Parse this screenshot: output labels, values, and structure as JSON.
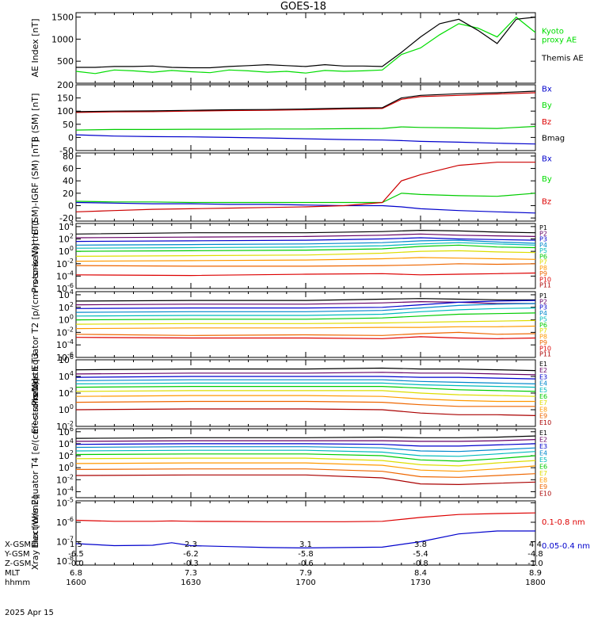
{
  "title": "GOES-18",
  "date_label": "2025 Apr 15",
  "orbit_table": {
    "row_labels": [
      "X-GSM",
      "Y-GSM",
      "Z-GSM",
      "MLT",
      "hhmm"
    ],
    "columns": [
      [
        "1.5",
        "-6.5",
        "-0.0",
        "6.8",
        "1600"
      ],
      [
        "2.3",
        "-6.2",
        "-0.3",
        "7.3",
        "1630"
      ],
      [
        "3.1",
        "-5.8",
        "-0.6",
        "7.9",
        "1700"
      ],
      [
        "3.8",
        "-5.4",
        "-0.8",
        "8.4",
        "1730"
      ],
      [
        "4.4",
        "-4.8",
        "-1.0",
        "8.9",
        "1800"
      ]
    ]
  },
  "chart_data": [
    {
      "type": "line",
      "ylabel": "AE Index [nT]",
      "yticks": [
        "1500",
        "1000",
        "500"
      ],
      "ylim": [
        0,
        1600
      ],
      "x": [
        0,
        5,
        10,
        15,
        20,
        25,
        30,
        35,
        40,
        45,
        50,
        55,
        60,
        65,
        70,
        75,
        80,
        85,
        90,
        95,
        100,
        105,
        110,
        115,
        120
      ],
      "series": [
        {
          "name": "Kyoto proxy AE",
          "color": "#00dd00",
          "values": [
            270,
            220,
            300,
            280,
            250,
            290,
            260,
            240,
            300,
            280,
            250,
            270,
            230,
            290,
            270,
            280,
            300,
            650,
            800,
            1100,
            1350,
            1250,
            1050,
            1500,
            1150
          ]
        },
        {
          "name": "Themis AE",
          "color": "#000000",
          "values": [
            360,
            360,
            380,
            380,
            390,
            360,
            350,
            350,
            380,
            400,
            420,
            400,
            380,
            420,
            390,
            390,
            380,
            700,
            1050,
            1350,
            1450,
            1200,
            900,
            1450,
            1500
          ]
        }
      ]
    },
    {
      "type": "line",
      "ylabel": "B (SM) [nT]",
      "yticks": [
        "200",
        "150",
        "100",
        "50",
        "0",
        "-50"
      ],
      "ylim": [
        -50,
        200
      ],
      "x": [
        0,
        10,
        20,
        30,
        40,
        50,
        60,
        70,
        80,
        85,
        90,
        100,
        110,
        120
      ],
      "series": [
        {
          "name": "Bx",
          "color": "#0000cc",
          "values": [
            10,
            5,
            3,
            2,
            0,
            -2,
            -5,
            -8,
            -10,
            -12,
            -15,
            -18,
            -22,
            -25
          ]
        },
        {
          "name": "By",
          "color": "#00cc00",
          "values": [
            28,
            30,
            30,
            31,
            31,
            32,
            32,
            33,
            34,
            40,
            38,
            36,
            34,
            42
          ]
        },
        {
          "name": "Bz",
          "color": "#cc0000",
          "values": [
            95,
            97,
            98,
            100,
            102,
            103,
            105,
            108,
            110,
            145,
            155,
            160,
            165,
            170
          ]
        },
        {
          "name": "Bmag",
          "color": "#000000",
          "values": [
            98,
            100,
            101,
            103,
            105,
            106,
            108,
            111,
            113,
            150,
            160,
            166,
            170,
            176
          ]
        }
      ]
    },
    {
      "type": "line",
      "ylabel": "B (SM)-IGRF (SM) [nT]",
      "yticks": [
        "80",
        "60",
        "40",
        "20",
        "0",
        "-20"
      ],
      "ylim": [
        -25,
        85
      ],
      "x": [
        0,
        10,
        20,
        30,
        40,
        50,
        60,
        70,
        80,
        85,
        90,
        100,
        110,
        120
      ],
      "series": [
        {
          "name": "Bx",
          "color": "#0000cc",
          "values": [
            5,
            4,
            3,
            3,
            2,
            2,
            1,
            0,
            0,
            -2,
            -5,
            -8,
            -10,
            -12
          ]
        },
        {
          "name": "By",
          "color": "#00cc00",
          "values": [
            7,
            6,
            6,
            5,
            5,
            5,
            5,
            5,
            5,
            20,
            18,
            16,
            15,
            20
          ]
        },
        {
          "name": "Bz",
          "color": "#cc0000",
          "values": [
            -10,
            -8,
            -6,
            -5,
            -4,
            -3,
            -2,
            0,
            5,
            40,
            50,
            65,
            70,
            70
          ]
        }
      ]
    },
    {
      "type": "line",
      "ylabel": "Protons North T1",
      "yticks": [
        "10^4",
        "10^2",
        "10^0",
        "10^-2",
        "10^-4",
        "10^-6"
      ],
      "log_range_exp": [
        -6,
        4.5
      ],
      "x": [
        0,
        30,
        60,
        80,
        90,
        100,
        110,
        120
      ],
      "series": [
        {
          "name": "P1",
          "color": "#000000",
          "values": [
            2.8,
            3.0,
            3.0,
            3.2,
            3.4,
            3.3,
            3.1,
            3.0
          ]
        },
        {
          "name": "P2",
          "color": "#660066",
          "values": [
            2.2,
            2.3,
            2.4,
            2.6,
            2.8,
            2.6,
            2.5,
            2.4
          ]
        },
        {
          "name": "P3",
          "color": "#0000cc",
          "values": [
            1.6,
            1.7,
            1.8,
            2.0,
            2.2,
            2.0,
            1.9,
            1.8
          ]
        },
        {
          "name": "P4",
          "color": "#0088cc",
          "values": [
            1.0,
            1.1,
            1.2,
            1.4,
            1.7,
            1.8,
            1.5,
            1.3
          ]
        },
        {
          "name": "P5",
          "color": "#00bbbb",
          "values": [
            0.5,
            0.6,
            0.7,
            0.9,
            1.2,
            1.4,
            1.2,
            1.0
          ]
        },
        {
          "name": "P6",
          "color": "#00cc00",
          "values": [
            0.0,
            0.1,
            0.2,
            0.4,
            0.8,
            1.0,
            0.7,
            0.6
          ]
        },
        {
          "name": "P7",
          "color": "#dddd00",
          "values": [
            -0.8,
            -0.7,
            -0.6,
            -0.3,
            0.0,
            0.1,
            -0.1,
            -0.2
          ]
        },
        {
          "name": "P8",
          "color": "#ff9900",
          "values": [
            -1.6,
            -1.5,
            -1.4,
            -1.2,
            -1.0,
            -1.1,
            -1.2,
            -1.3
          ]
        },
        {
          "name": "P9",
          "color": "#ee6600",
          "values": [
            -2.3,
            -2.4,
            -2.4,
            -2.3,
            -2.2,
            -2.0,
            -2.1,
            -2.0
          ]
        },
        {
          "name": "P10",
          "color": "#dd0000",
          "values": [
            -3.8,
            -3.9,
            -3.7,
            -3.6,
            -3.8,
            -3.7,
            -3.6,
            -3.5
          ]
        },
        {
          "name": "P11",
          "color": "#aa0000",
          "values": [
            null,
            null,
            null,
            null,
            null,
            null,
            null,
            null
          ]
        }
      ]
    },
    {
      "type": "line",
      "ylabel": "Protons Equator T2 [p/(cm²-s-sr-keV)]",
      "yticks": [
        "10^4",
        "10^2",
        "10^0",
        "10^-2",
        "10^-4",
        "10^-6"
      ],
      "log_range_exp": [
        -6,
        4.5
      ],
      "x": [
        0,
        30,
        60,
        80,
        90,
        100,
        110,
        120
      ],
      "series": [
        {
          "name": "P1",
          "color": "#000000",
          "values": [
            3.0,
            3.1,
            3.1,
            3.3,
            3.4,
            3.3,
            3.2,
            3.2
          ]
        },
        {
          "name": "P2",
          "color": "#660066",
          "values": [
            2.4,
            2.5,
            2.5,
            2.7,
            2.9,
            2.8,
            2.6,
            2.6
          ]
        },
        {
          "name": "P3",
          "color": "#0000cc",
          "values": [
            1.8,
            1.9,
            1.9,
            2.0,
            2.4,
            2.8,
            3.0,
            3.1
          ]
        },
        {
          "name": "P4",
          "color": "#0088cc",
          "values": [
            1.2,
            1.3,
            1.3,
            1.5,
            1.9,
            2.3,
            2.5,
            2.6
          ]
        },
        {
          "name": "P5",
          "color": "#00bbbb",
          "values": [
            0.6,
            0.7,
            0.7,
            0.9,
            1.3,
            1.6,
            1.8,
            1.9
          ]
        },
        {
          "name": "P6",
          "color": "#00cc00",
          "values": [
            0.0,
            0.1,
            0.1,
            0.3,
            0.6,
            0.9,
            1.0,
            1.1
          ]
        },
        {
          "name": "P7",
          "color": "#dddd00",
          "values": [
            -0.7,
            -0.6,
            -0.6,
            -0.5,
            -0.4,
            -0.3,
            -0.2,
            -0.1
          ]
        },
        {
          "name": "P8",
          "color": "#ff9900",
          "values": [
            -1.4,
            -1.3,
            -1.3,
            -1.2,
            -1.2,
            -1.1,
            -1.1,
            -1.0
          ]
        },
        {
          "name": "P9",
          "color": "#ee6600",
          "values": [
            -2.3,
            -2.5,
            -2.4,
            -2.5,
            -2.2,
            -2.0,
            -2.3,
            -2.2
          ]
        },
        {
          "name": "P10",
          "color": "#dd0000",
          "values": [
            -2.8,
            -2.9,
            -2.9,
            -3.0,
            -2.7,
            -2.9,
            -3.0,
            -2.9
          ]
        },
        {
          "name": "P11",
          "color": "#aa0000",
          "values": [
            null,
            null,
            null,
            null,
            null,
            null,
            null,
            null
          ]
        }
      ]
    },
    {
      "type": "line",
      "ylabel": "Electrons North T3",
      "yticks": [
        "10^6",
        "10^4",
        "10^2",
        "10^0",
        "10^-2"
      ],
      "log_range_exp": [
        -2,
        6
      ],
      "x": [
        0,
        30,
        60,
        80,
        90,
        100,
        110,
        120
      ],
      "series": [
        {
          "name": "E1",
          "color": "#000000",
          "values": [
            4.8,
            4.9,
            4.9,
            5.0,
            4.9,
            4.9,
            4.8,
            4.7
          ]
        },
        {
          "name": "E2",
          "color": "#660066",
          "values": [
            4.3,
            4.4,
            4.4,
            4.5,
            4.4,
            4.4,
            4.3,
            4.2
          ]
        },
        {
          "name": "E3",
          "color": "#0000cc",
          "values": [
            3.9,
            4.0,
            4.0,
            4.0,
            3.9,
            3.9,
            3.8,
            3.7
          ]
        },
        {
          "name": "E4",
          "color": "#0088cc",
          "values": [
            3.5,
            3.6,
            3.6,
            3.6,
            3.4,
            3.3,
            3.2,
            3.1
          ]
        },
        {
          "name": "E5",
          "color": "#00bbbb",
          "values": [
            3.1,
            3.2,
            3.2,
            3.2,
            3.0,
            2.9,
            2.8,
            2.7
          ]
        },
        {
          "name": "E6",
          "color": "#00cc00",
          "values": [
            2.7,
            2.8,
            2.8,
            2.8,
            2.6,
            2.4,
            2.3,
            2.2
          ]
        },
        {
          "name": "E7",
          "color": "#dddd00",
          "values": [
            2.2,
            2.3,
            2.3,
            2.3,
            2.0,
            1.8,
            1.7,
            1.6
          ]
        },
        {
          "name": "E8",
          "color": "#ff9900",
          "values": [
            1.6,
            1.7,
            1.7,
            1.6,
            1.3,
            1.1,
            1.0,
            1.0
          ]
        },
        {
          "name": "E9",
          "color": "#ee6600",
          "values": [
            0.9,
            1.0,
            1.0,
            0.9,
            0.6,
            0.4,
            0.4,
            0.4
          ]
        },
        {
          "name": "E10",
          "color": "#aa0000",
          "values": [
            0.0,
            0.1,
            0.1,
            0.0,
            -0.4,
            -0.6,
            -0.6,
            -0.7
          ]
        }
      ]
    },
    {
      "type": "line",
      "ylabel": "Electrons Equator T4 [e/(cm²-s-sr-keV)]",
      "yticks": [
        "10^6",
        "10^4",
        "10^2",
        "10^0",
        "10^-2",
        "10^-4"
      ],
      "log_range_exp": [
        -5,
        6.5
      ],
      "x": [
        0,
        30,
        60,
        80,
        90,
        100,
        110,
        120
      ],
      "series": [
        {
          "name": "E1",
          "color": "#000000",
          "values": [
            4.9,
            5.0,
            5.0,
            5.1,
            5.0,
            5.0,
            5.1,
            5.3
          ]
        },
        {
          "name": "E2",
          "color": "#660066",
          "values": [
            4.4,
            4.5,
            4.5,
            4.5,
            4.4,
            4.4,
            4.5,
            4.7
          ]
        },
        {
          "name": "E3",
          "color": "#0000cc",
          "values": [
            3.9,
            4.0,
            4.0,
            3.9,
            3.6,
            3.6,
            3.8,
            4.0
          ]
        },
        {
          "name": "E4",
          "color": "#0088cc",
          "values": [
            3.4,
            3.5,
            3.5,
            3.3,
            2.8,
            2.7,
            3.0,
            3.3
          ]
        },
        {
          "name": "E5",
          "color": "#00bbbb",
          "values": [
            2.8,
            2.9,
            2.9,
            2.6,
            2.0,
            1.9,
            2.3,
            2.7
          ]
        },
        {
          "name": "E6",
          "color": "#00cc00",
          "values": [
            2.2,
            2.3,
            2.3,
            2.0,
            1.3,
            1.1,
            1.5,
            2.0
          ]
        },
        {
          "name": "E7",
          "color": "#dddd00",
          "values": [
            1.5,
            1.6,
            1.6,
            1.2,
            0.5,
            0.3,
            0.8,
            1.2
          ]
        },
        {
          "name": "E8",
          "color": "#ff9900",
          "values": [
            0.7,
            0.8,
            0.8,
            0.4,
            -0.4,
            -0.6,
            -0.2,
            0.3
          ]
        },
        {
          "name": "E9",
          "color": "#ee6600",
          "values": [
            -0.3,
            -0.2,
            -0.2,
            -0.6,
            -1.5,
            -1.6,
            -1.3,
            -1.0
          ]
        },
        {
          "name": "E10",
          "color": "#aa0000",
          "values": [
            -1.3,
            -1.2,
            -1.2,
            -1.7,
            -2.7,
            -2.8,
            -2.6,
            -2.4
          ]
        }
      ]
    },
    {
      "type": "line",
      "ylabel": "Xray flux [W/m2]",
      "yticks": [
        "10^-5",
        "10^-6",
        "10^-7",
        "10^-8"
      ],
      "log_range_exp": [
        -8.2,
        -4.9
      ],
      "x": [
        0,
        10,
        20,
        25,
        30,
        40,
        50,
        60,
        70,
        80,
        90,
        100,
        110,
        120
      ],
      "series": [
        {
          "name": "0.1-0.8 nm",
          "color": "#dd0000",
          "values": [
            -5.9,
            -5.95,
            -5.95,
            -5.93,
            -5.95,
            -5.96,
            -5.97,
            -5.97,
            -5.97,
            -5.95,
            -5.75,
            -5.6,
            -5.55,
            -5.52
          ]
        },
        {
          "name": "0.05-0.4 nm",
          "color": "#0000cc",
          "values": [
            -7.1,
            -7.2,
            -7.18,
            -7.05,
            -7.2,
            -7.25,
            -7.3,
            -7.32,
            -7.3,
            -7.28,
            -7.0,
            -6.6,
            -6.45,
            -6.45
          ]
        }
      ]
    }
  ],
  "legend_labels": {
    "p0": [
      "Kyoto",
      "proxy AE",
      "Themis AE"
    ],
    "p1": [
      "Bx",
      "By",
      "Bz",
      "Bmag"
    ],
    "p2": [
      "Bx",
      "By",
      "Bz"
    ],
    "p7": [
      "0.1-0.8 nm",
      "0.05-0.4 nm"
    ]
  },
  "colors": {
    "black": "#000000",
    "green": "#00dd00",
    "blue": "#0000cc",
    "red": "#dd0000"
  }
}
